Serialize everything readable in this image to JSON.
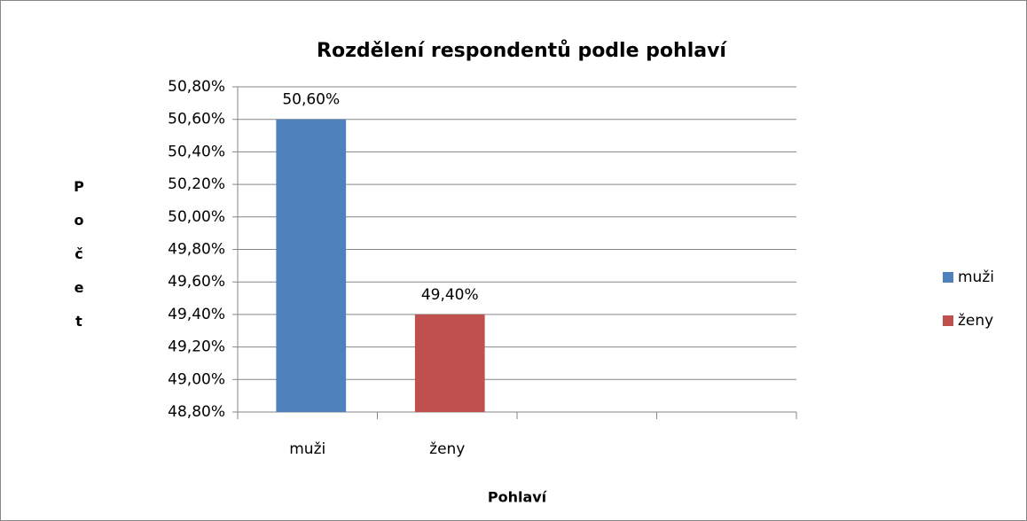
{
  "chart_data": {
    "type": "bar",
    "title": "Rozdělení respondentů podle pohlaví",
    "x_label": "Pohlaví",
    "y_label": "Počet",
    "categories": [
      "muži",
      "ženy",
      null,
      null
    ],
    "series": [
      {
        "name": "muži",
        "color": "#4f81bd",
        "values": [
          50.6,
          null,
          null,
          null
        ],
        "value_labels": [
          "50,60%",
          null,
          null,
          null
        ]
      },
      {
        "name": "ženy",
        "color": "#c0504d",
        "values": [
          null,
          49.4,
          null,
          null
        ],
        "value_labels": [
          null,
          "49,40%",
          null,
          null
        ]
      }
    ],
    "ylim": [
      48.8,
      50.8
    ],
    "yticks": [
      {
        "value": 48.8,
        "label": "48,80%"
      },
      {
        "value": 49.0,
        "label": "49,00%"
      },
      {
        "value": 49.2,
        "label": "49,20%"
      },
      {
        "value": 49.4,
        "label": "49,40%"
      },
      {
        "value": 49.6,
        "label": "49,60%"
      },
      {
        "value": 49.8,
        "label": "49,80%"
      },
      {
        "value": 50.0,
        "label": "50,00%"
      },
      {
        "value": 50.2,
        "label": "50,20%"
      },
      {
        "value": 50.4,
        "label": "50,40%"
      },
      {
        "value": 50.6,
        "label": "50,60%"
      },
      {
        "value": 50.8,
        "label": "50,80%"
      }
    ],
    "grid": true,
    "legend": "right"
  }
}
